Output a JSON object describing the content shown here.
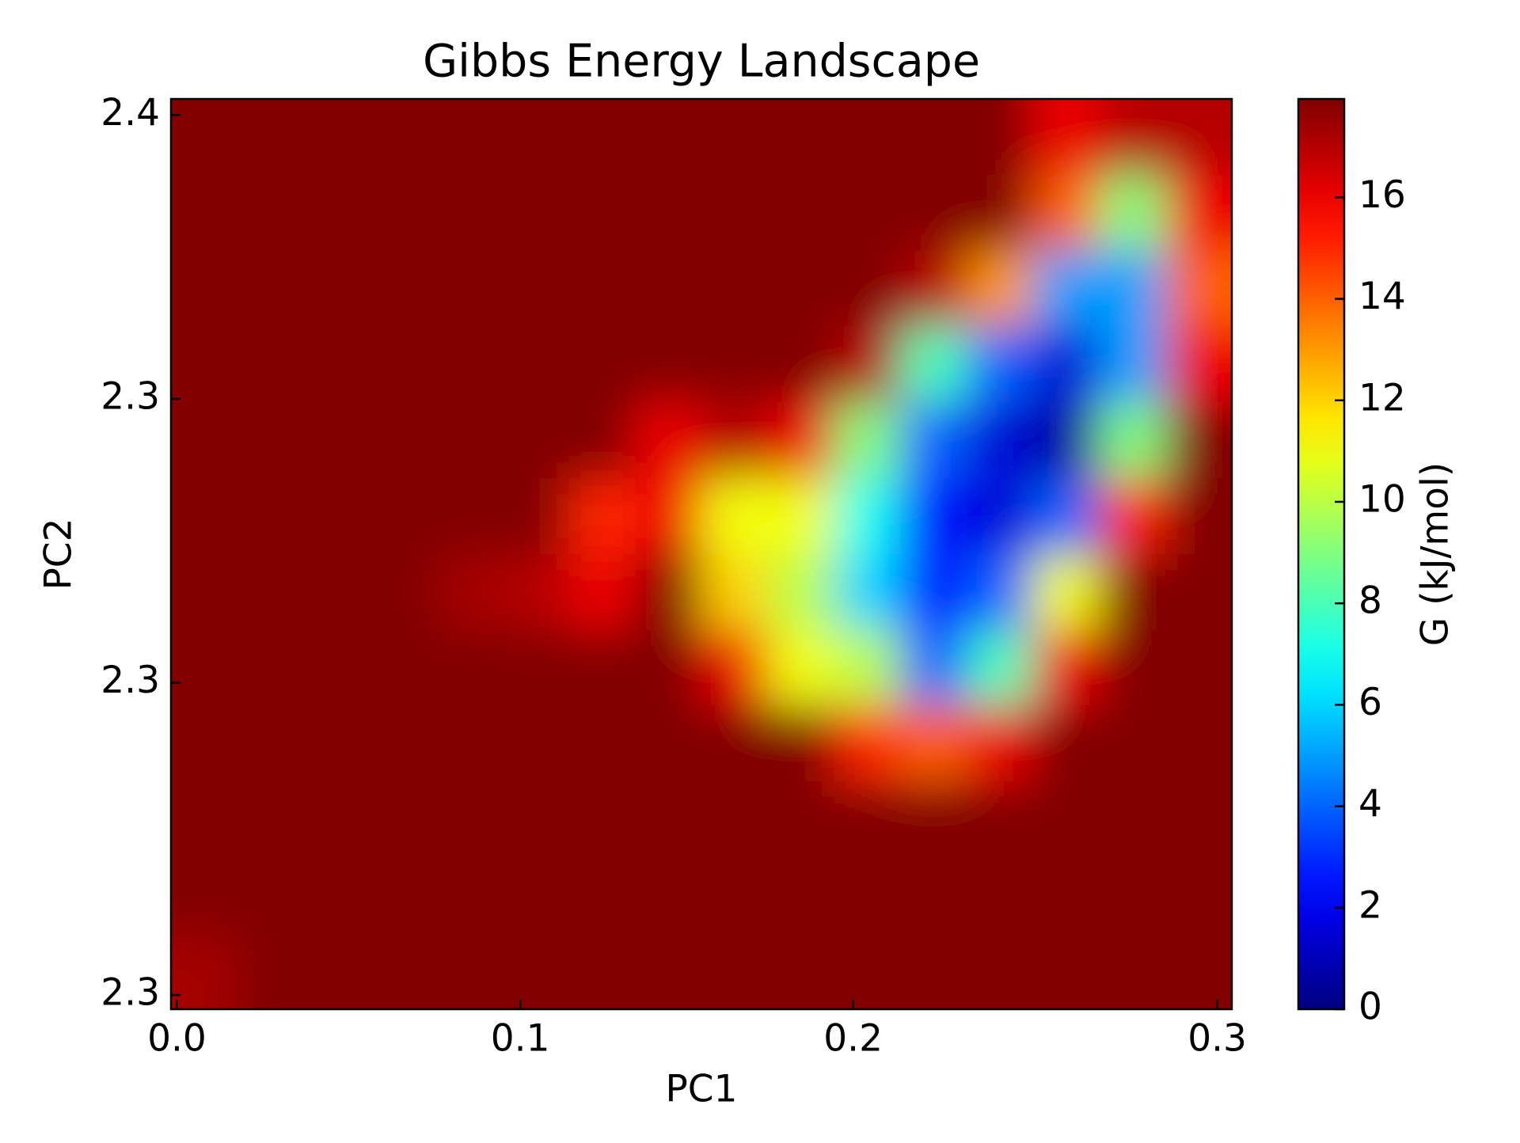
{
  "chart_data": {
    "type": "heatmap",
    "title": "Gibbs Energy Landscape",
    "xlabel": "PC1",
    "ylabel": "PC2",
    "colorbar_label": "G (kJ/mol)",
    "colormap": "jet",
    "x": [
      0.0079,
      0.027,
      0.0461,
      0.0652,
      0.0844,
      0.1035,
      0.1226,
      0.1417,
      0.1608,
      0.1799,
      0.1991,
      0.2182,
      0.2373,
      0.2564,
      0.2755,
      0.2946
    ],
    "y": [
      2.3577,
      2.3497,
      2.3417,
      2.3337,
      2.3256,
      2.3176,
      2.3096,
      2.3016,
      2.2936,
      2.2856,
      2.2775,
      2.2695
    ],
    "z": [
      [
        17.9,
        17.9,
        17.9,
        17.9,
        17.9,
        17.9,
        17.9,
        17.9,
        17.9,
        17.9,
        17.9,
        17.9,
        17.9,
        16,
        17,
        17
      ],
      [
        17.9,
        17.9,
        17.9,
        17.9,
        17.9,
        17.9,
        17.9,
        17.9,
        17.9,
        17.9,
        17.9,
        17.9,
        17.9,
        14,
        9,
        16
      ],
      [
        17.9,
        17.9,
        17.9,
        17.9,
        17.9,
        17.9,
        17.9,
        17.9,
        17.9,
        17.9,
        17.9,
        17,
        13,
        5,
        5,
        14
      ],
      [
        17.9,
        17.9,
        17.9,
        17.9,
        17.9,
        17.9,
        17.9,
        17.9,
        17.9,
        17.9,
        17,
        8,
        4,
        1.5,
        5,
        16
      ],
      [
        17.9,
        17.9,
        17.9,
        17.9,
        17.9,
        17.9,
        17.9,
        16,
        17,
        16,
        9,
        4,
        1.5,
        0.5,
        9,
        17.9
      ],
      [
        17.9,
        17.9,
        17.9,
        17.9,
        17.9,
        17.9,
        15,
        16,
        11,
        11,
        7,
        2.5,
        1.5,
        4,
        15,
        17.9
      ],
      [
        17.9,
        17.9,
        17.9,
        17.9,
        17.3,
        17,
        16,
        17.9,
        12,
        10,
        6,
        2.5,
        4,
        11,
        17.9,
        17.9
      ],
      [
        17.9,
        17.9,
        17.9,
        17.9,
        17.9,
        17.9,
        17.9,
        17.9,
        16,
        11,
        10,
        4,
        8,
        16,
        17.9,
        17.9
      ],
      [
        17.9,
        17.9,
        17.9,
        17.9,
        17.9,
        17.9,
        17.9,
        17.9,
        17.9,
        17.9,
        15,
        14,
        16,
        17.9,
        17.9,
        17.9
      ],
      [
        17.9,
        17.9,
        17.9,
        17.9,
        17.9,
        17.9,
        17.9,
        17.9,
        17.9,
        17.9,
        17.9,
        17.9,
        17.9,
        17.9,
        17.9,
        17.9
      ],
      [
        17.9,
        17.9,
        17.9,
        17.9,
        17.9,
        17.9,
        17.9,
        17.9,
        17.9,
        17.9,
        17.9,
        17.9,
        17.9,
        17.9,
        17.9,
        17.9
      ],
      [
        17.3,
        17.9,
        17.9,
        17.9,
        17.9,
        17.9,
        17.9,
        17.9,
        17.9,
        17.9,
        17.9,
        17.9,
        17.9,
        17.9,
        17.9,
        17.9
      ]
    ],
    "xlim": [
      -0.0017,
      0.3042
    ],
    "ylim": [
      2.2655,
      2.3617
    ],
    "xticks": [
      {
        "value": 0.0,
        "label": "0.0"
      },
      {
        "value": 0.099,
        "label": "0.1"
      },
      {
        "value": 0.195,
        "label": "0.2"
      },
      {
        "value": 0.3,
        "label": "0.3"
      }
    ],
    "yticks": [
      {
        "value": 2.36,
        "label": "2.4"
      },
      {
        "value": 2.33,
        "label": "2.3"
      },
      {
        "value": 2.3,
        "label": "2.3"
      },
      {
        "value": 2.267,
        "label": "2.3"
      }
    ],
    "clim": [
      0,
      17.94
    ],
    "cticks": [
      0,
      2,
      4,
      6,
      8,
      10,
      12,
      14,
      16
    ]
  }
}
